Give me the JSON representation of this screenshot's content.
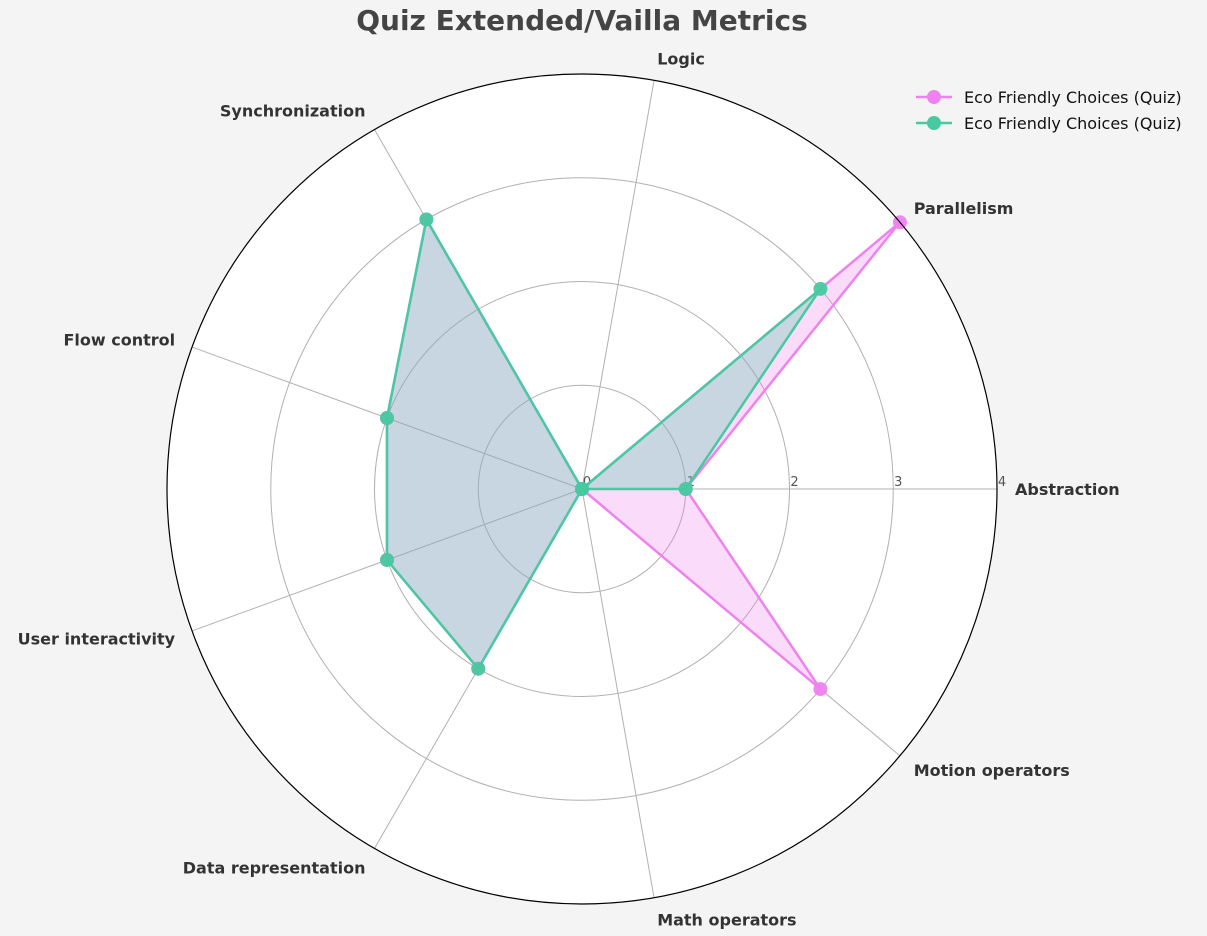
{
  "title": "Quiz Extended/Vailla Metrics",
  "chart_data": {
    "type": "radar",
    "title": "Quiz Extended/Vailla Metrics",
    "categories": [
      "Abstraction",
      "Parallelism",
      "Logic",
      "Synchronization",
      "Flow control",
      "User interactivity",
      "Data representation",
      "Math operators",
      "Motion operators"
    ],
    "rlim": [
      0,
      4
    ],
    "rticks": [
      0,
      1,
      2,
      3,
      4
    ],
    "grid": true,
    "legend_position": "top-right",
    "series": [
      {
        "name": "Eco Friendly Choices (Quiz)",
        "color": "#ee82ee",
        "values": [
          1,
          4,
          0,
          3,
          2,
          2,
          2,
          0,
          3
        ]
      },
      {
        "name": "Eco Friendly Choices (Quiz)",
        "color": "#48c9a0",
        "values": [
          1,
          3,
          0,
          3,
          2,
          2,
          2,
          0,
          0
        ]
      }
    ]
  }
}
